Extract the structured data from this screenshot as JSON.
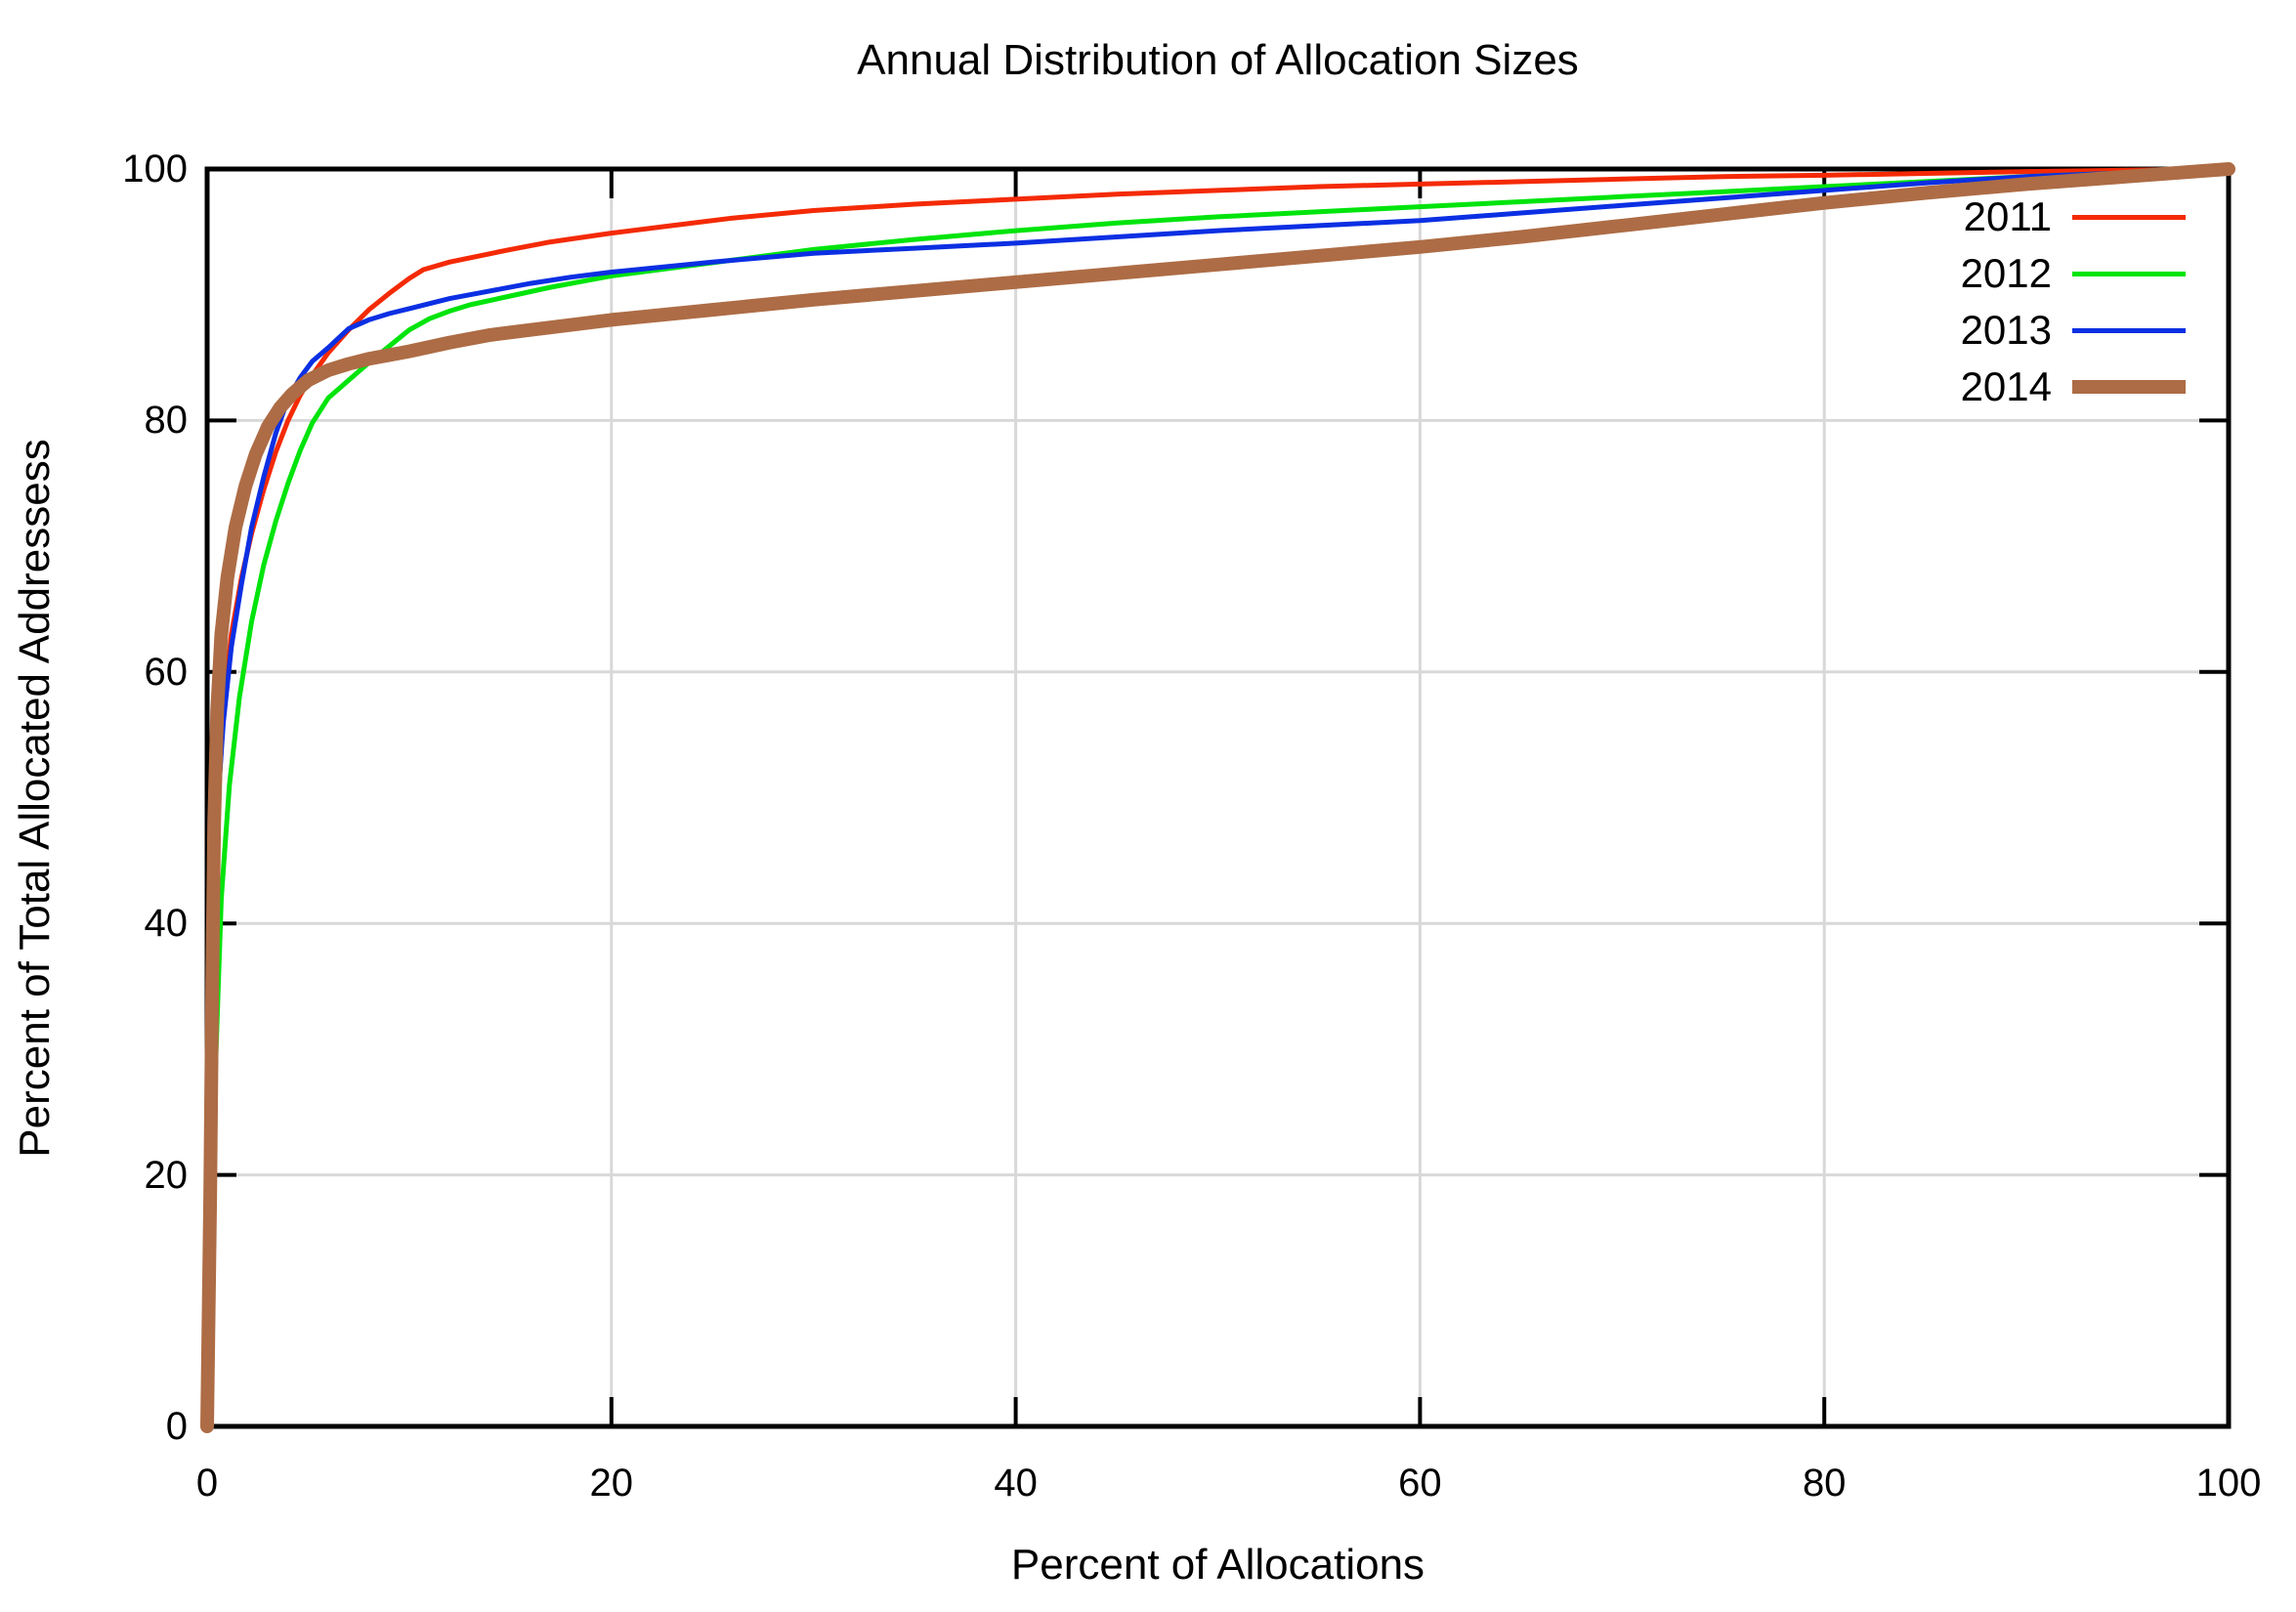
{
  "chart_data": {
    "type": "line",
    "title": "Annual Distribution of Allocation Sizes",
    "xlabel": "Percent of Allocations",
    "ylabel": "Percent of Total Allocated Addressess",
    "xlim": [
      0,
      100
    ],
    "ylim": [
      0,
      100
    ],
    "xticks": [
      0,
      20,
      40,
      60,
      80,
      100
    ],
    "yticks": [
      0,
      20,
      40,
      60,
      80,
      100
    ],
    "xtick_labels": [
      "0",
      "20",
      "40",
      "60",
      "80",
      "100"
    ],
    "ytick_labels": [
      "0",
      "20",
      "40",
      "60",
      "80",
      "100"
    ],
    "grid": true,
    "legend_position": "top-right-inside",
    "colors": {
      "background": "#ffffff",
      "border": "#000000",
      "grid": "#d8d8d8",
      "text": "#000000"
    },
    "series": [
      {
        "name": "2011",
        "color": "#f42a05",
        "line_width": 5,
        "points": [
          [
            0,
            0
          ],
          [
            0.15,
            15
          ],
          [
            0.3,
            33
          ],
          [
            0.5,
            48
          ],
          [
            0.8,
            57
          ],
          [
            1.2,
            63
          ],
          [
            1.7,
            67.5
          ],
          [
            2.2,
            71
          ],
          [
            2.8,
            74.5
          ],
          [
            3.4,
            77.5
          ],
          [
            4,
            80
          ],
          [
            4.6,
            82
          ],
          [
            5.2,
            83.6
          ],
          [
            6,
            85.4
          ],
          [
            7,
            87.2
          ],
          [
            8,
            88.8
          ],
          [
            9,
            90.1
          ],
          [
            10,
            91.3
          ],
          [
            10.7,
            92
          ],
          [
            12,
            92.6
          ],
          [
            13.5,
            93.1
          ],
          [
            15,
            93.6
          ],
          [
            17,
            94.2
          ],
          [
            20,
            94.9
          ],
          [
            23,
            95.5
          ],
          [
            26,
            96.1
          ],
          [
            30,
            96.7
          ],
          [
            35,
            97.2
          ],
          [
            40,
            97.6
          ],
          [
            45,
            98
          ],
          [
            50,
            98.3
          ],
          [
            55,
            98.6
          ],
          [
            60,
            98.8
          ],
          [
            65,
            99
          ],
          [
            70,
            99.2
          ],
          [
            75,
            99.4
          ],
          [
            80,
            99.5
          ],
          [
            85,
            99.65
          ],
          [
            90,
            99.8
          ],
          [
            95,
            99.9
          ],
          [
            100,
            100
          ]
        ]
      },
      {
        "name": "2012",
        "color": "#00e40c",
        "line_width": 5,
        "points": [
          [
            0,
            0
          ],
          [
            0.2,
            12
          ],
          [
            0.4,
            28
          ],
          [
            0.7,
            42
          ],
          [
            1.1,
            51
          ],
          [
            1.6,
            58
          ],
          [
            2.2,
            64
          ],
          [
            2.8,
            68.5
          ],
          [
            3.4,
            72
          ],
          [
            4,
            75
          ],
          [
            4.6,
            77.6
          ],
          [
            5.2,
            79.8
          ],
          [
            6,
            81.8
          ],
          [
            7,
            83.2
          ],
          [
            8,
            84.6
          ],
          [
            9,
            85.9
          ],
          [
            10,
            87.2
          ],
          [
            11,
            88.1
          ],
          [
            12,
            88.7
          ],
          [
            13,
            89.2
          ],
          [
            15,
            89.9
          ],
          [
            17,
            90.6
          ],
          [
            20,
            91.5
          ],
          [
            25,
            92.55
          ],
          [
            30,
            93.6
          ],
          [
            35,
            94.4
          ],
          [
            40,
            95.1
          ],
          [
            45,
            95.7
          ],
          [
            50,
            96.2
          ],
          [
            55,
            96.6
          ],
          [
            60,
            97
          ],
          [
            65,
            97.4
          ],
          [
            70,
            97.8
          ],
          [
            75,
            98.2
          ],
          [
            80,
            98.6
          ],
          [
            85,
            99
          ],
          [
            90,
            99.4
          ],
          [
            95,
            99.7
          ],
          [
            100,
            100
          ]
        ]
      },
      {
        "name": "2013",
        "color": "#0b2fe3",
        "line_width": 5,
        "points": [
          [
            0,
            0
          ],
          [
            0.15,
            20
          ],
          [
            0.3,
            38
          ],
          [
            0.5,
            49
          ],
          [
            0.8,
            56
          ],
          [
            1.2,
            62
          ],
          [
            1.7,
            67
          ],
          [
            2.2,
            71.5
          ],
          [
            2.8,
            75.5
          ],
          [
            3.4,
            79
          ],
          [
            4,
            81.7
          ],
          [
            4.6,
            83.4
          ],
          [
            5.2,
            84.7
          ],
          [
            6,
            85.8
          ],
          [
            7,
            87.3
          ],
          [
            8,
            88
          ],
          [
            9,
            88.5
          ],
          [
            10,
            88.9
          ],
          [
            12,
            89.7
          ],
          [
            14,
            90.3
          ],
          [
            16,
            90.9
          ],
          [
            18,
            91.4
          ],
          [
            20,
            91.8
          ],
          [
            25,
            92.6
          ],
          [
            30,
            93.3
          ],
          [
            35,
            93.7
          ],
          [
            40,
            94.1
          ],
          [
            45,
            94.6
          ],
          [
            50,
            95.1
          ],
          [
            55,
            95.5
          ],
          [
            60,
            95.9
          ],
          [
            65,
            96.5
          ],
          [
            70,
            97.1
          ],
          [
            75,
            97.7
          ],
          [
            80,
            98.3
          ],
          [
            85,
            98.9
          ],
          [
            90,
            99.4
          ],
          [
            95,
            99.7
          ],
          [
            100,
            100
          ]
        ]
      },
      {
        "name": "2014",
        "color": "#ad6c45",
        "line_width": 14,
        "points": [
          [
            0,
            0
          ],
          [
            0.15,
            18
          ],
          [
            0.25,
            35
          ],
          [
            0.35,
            48
          ],
          [
            0.5,
            57
          ],
          [
            0.7,
            63
          ],
          [
            1,
            67.5
          ],
          [
            1.4,
            71.5
          ],
          [
            1.9,
            74.8
          ],
          [
            2.4,
            77.3
          ],
          [
            3,
            79.5
          ],
          [
            3.6,
            81
          ],
          [
            4.2,
            82.1
          ],
          [
            5,
            83.2
          ],
          [
            6,
            84
          ],
          [
            7,
            84.5
          ],
          [
            8,
            84.9
          ],
          [
            9,
            85.2
          ],
          [
            10,
            85.5
          ],
          [
            12,
            86.2
          ],
          [
            14,
            86.8
          ],
          [
            16,
            87.2
          ],
          [
            18,
            87.6
          ],
          [
            20,
            88
          ],
          [
            25,
            88.8
          ],
          [
            30,
            89.6
          ],
          [
            35,
            90.3
          ],
          [
            40,
            91
          ],
          [
            45,
            91.7
          ],
          [
            50,
            92.4
          ],
          [
            55,
            93.1
          ],
          [
            60,
            93.8
          ],
          [
            65,
            94.6
          ],
          [
            70,
            95.5
          ],
          [
            75,
            96.4
          ],
          [
            80,
            97.3
          ],
          [
            85,
            98.1
          ],
          [
            90,
            98.8
          ],
          [
            95,
            99.4
          ],
          [
            100,
            100
          ]
        ]
      }
    ]
  }
}
